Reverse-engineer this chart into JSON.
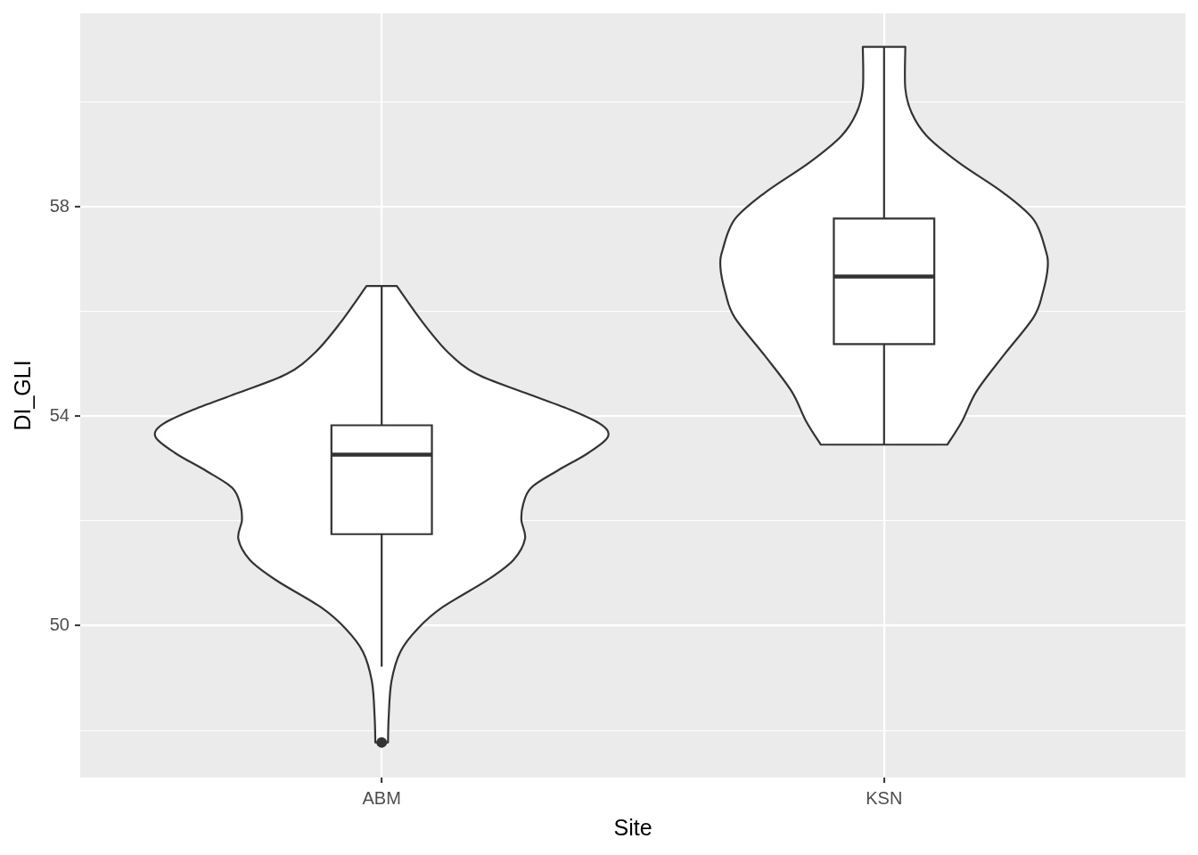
{
  "chart_data": {
    "type": "box",
    "xlabel": "Site",
    "ylabel": "DI_GLI",
    "categories": [
      "ABM",
      "KSN"
    ],
    "color": "#ffffff",
    "boxes": [
      {
        "low": 49.22,
        "q1": 51.75,
        "median": 53.27,
        "q3": 53.83,
        "high": 56.49,
        "outliers": [
          47.77
        ]
      },
      {
        "low": 53.46,
        "q1": 55.38,
        "median": 56.67,
        "q3": 57.78,
        "high": 61.06
      }
    ],
    "ylim": [
      47.1,
      61.7
    ],
    "yticks": [
      {
        "value": 48,
        "label": null
      },
      50,
      {
        "value": 52,
        "label": null
      },
      54,
      {
        "value": 56,
        "label": null
      },
      58,
      {
        "value": 60,
        "label": null
      }
    ],
    "grid": true
  }
}
